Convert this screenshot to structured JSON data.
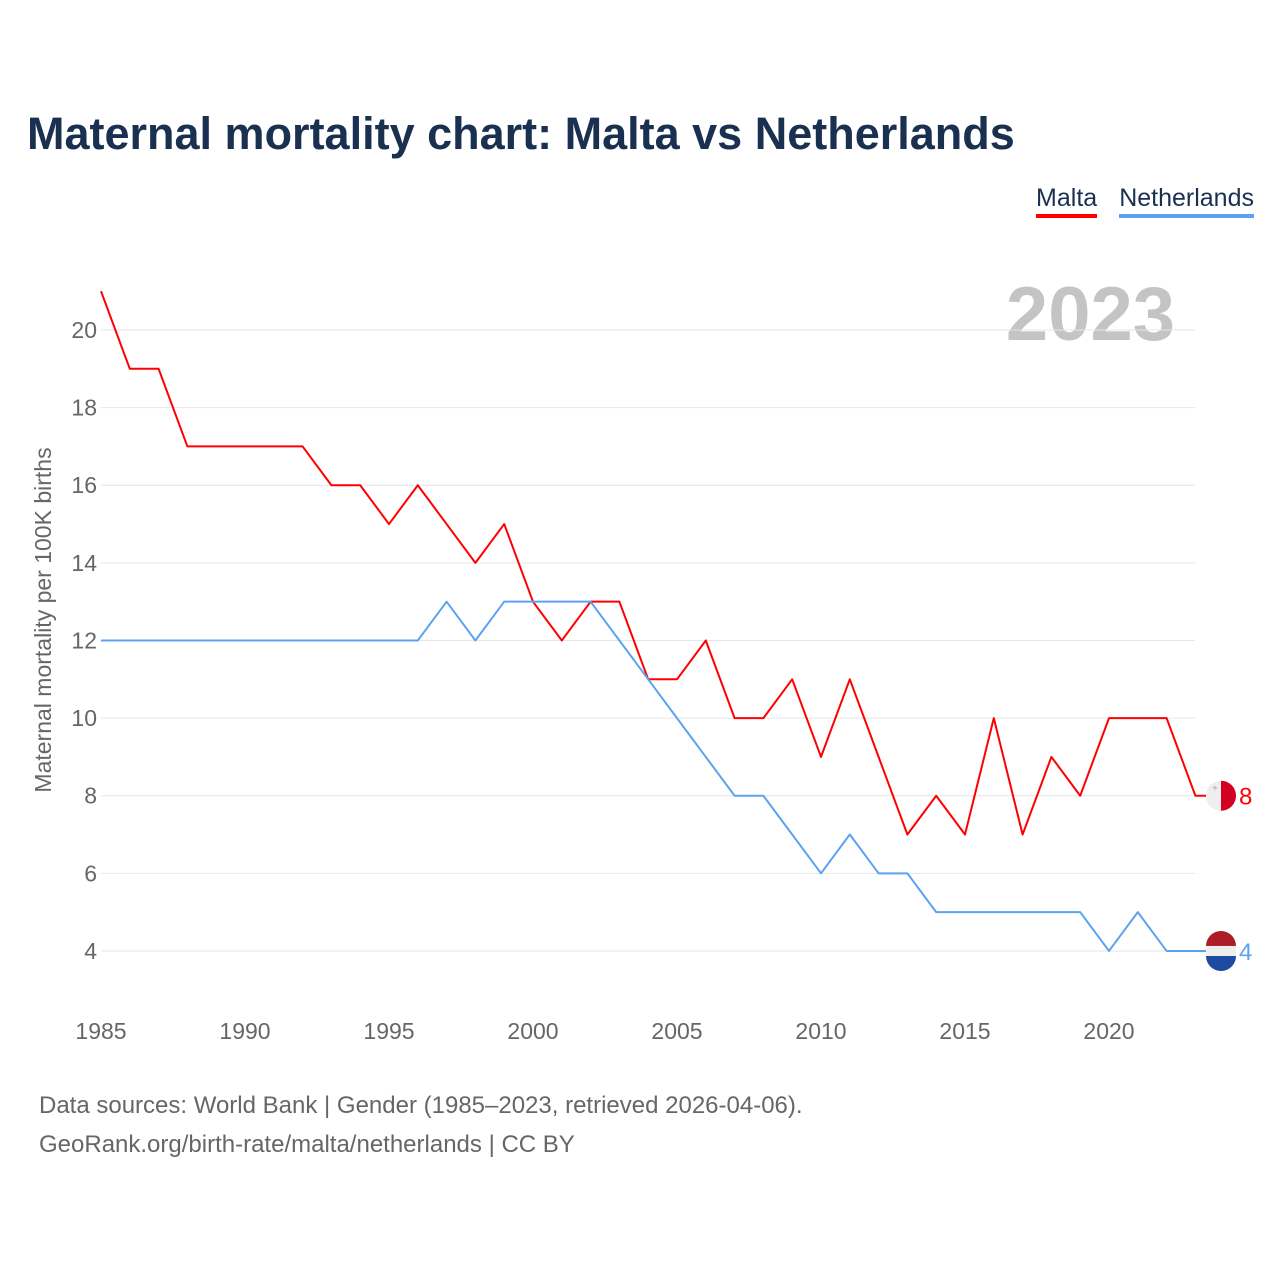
{
  "title": "Maternal mortality chart: Malta vs Netherlands",
  "footer": {
    "line1": "Data sources: World Bank | Gender (1985–2023, retrieved 2026-04-06).",
    "line2": "GeoRank.org/birth-rate/malta/netherlands | CC BY"
  },
  "chart_data": {
    "type": "line",
    "title": "Maternal mortality chart: Malta vs Netherlands",
    "xlabel": "",
    "ylabel": "Maternal mortality per 100K births",
    "year_watermark": "2023",
    "xlim": [
      1985,
      2023
    ],
    "ylim": [
      3,
      21
    ],
    "xticks": [
      1985,
      1990,
      1995,
      2000,
      2005,
      2010,
      2015,
      2020
    ],
    "yticks": [
      4,
      6,
      8,
      10,
      12,
      14,
      16,
      18,
      20
    ],
    "grid": true,
    "legend_position": "top-right",
    "x": [
      1985,
      1986,
      1987,
      1988,
      1989,
      1990,
      1991,
      1992,
      1993,
      1994,
      1995,
      1996,
      1997,
      1998,
      1999,
      2000,
      2001,
      2002,
      2003,
      2004,
      2005,
      2006,
      2007,
      2008,
      2009,
      2010,
      2011,
      2012,
      2013,
      2014,
      2015,
      2016,
      2017,
      2018,
      2019,
      2020,
      2021,
      2022,
      2023
    ],
    "series": [
      {
        "name": "Malta",
        "color": "#ff0000",
        "end_label": "8",
        "values": [
          21,
          19,
          19,
          17,
          17,
          17,
          17,
          17,
          16,
          16,
          15,
          16,
          15,
          14,
          15,
          13,
          12,
          13,
          13,
          11,
          11,
          12,
          10,
          10,
          11,
          9,
          11,
          9,
          7,
          8,
          7,
          10,
          7,
          9,
          8,
          10,
          10,
          10,
          8
        ]
      },
      {
        "name": "Netherlands",
        "color": "#5ba3f0",
        "end_label": "4",
        "values": [
          12,
          12,
          12,
          12,
          12,
          12,
          12,
          12,
          12,
          12,
          12,
          12,
          13,
          12,
          13,
          13,
          13,
          13,
          12,
          11,
          10,
          9,
          8,
          8,
          7,
          6,
          7,
          6,
          6,
          5,
          5,
          5,
          5,
          5,
          5,
          4,
          5,
          4,
          4
        ]
      }
    ]
  }
}
